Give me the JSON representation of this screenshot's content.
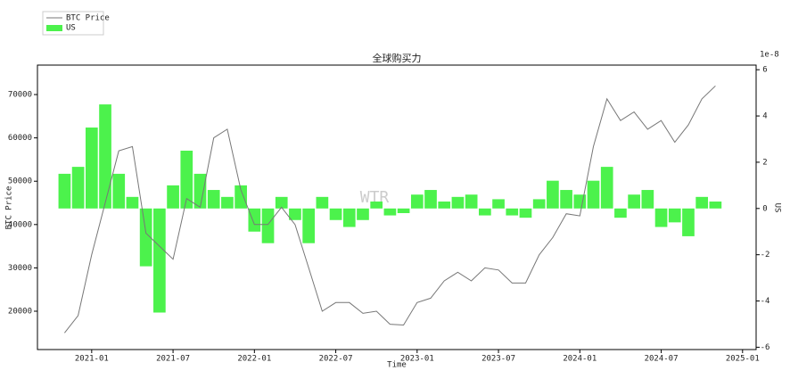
{
  "chart_data": {
    "type": "combo",
    "title": "全球购买力",
    "xlabel": "Time",
    "ylabel": "BTC Price",
    "y2label": "US",
    "y2_offset_text": "1e-8",
    "watermark": "WTR",
    "x": [
      "2020-11",
      "2020-12",
      "2021-01",
      "2021-02",
      "2021-03",
      "2021-04",
      "2021-05",
      "2021-06",
      "2021-07",
      "2021-08",
      "2021-09",
      "2021-10",
      "2021-11",
      "2021-12",
      "2022-01",
      "2022-02",
      "2022-03",
      "2022-04",
      "2022-05",
      "2022-06",
      "2022-07",
      "2022-08",
      "2022-09",
      "2022-10",
      "2022-11",
      "2022-12",
      "2023-01",
      "2023-02",
      "2023-03",
      "2023-04",
      "2023-05",
      "2023-06",
      "2023-07",
      "2023-08",
      "2023-09",
      "2023-10",
      "2023-11",
      "2023-12",
      "2024-01",
      "2024-02",
      "2024-03",
      "2024-04",
      "2024-05",
      "2024-06",
      "2024-07",
      "2024-08",
      "2024-09",
      "2024-10",
      "2024-11"
    ],
    "series": [
      {
        "name": "BTC Price",
        "type": "line",
        "axis": "y",
        "color": "#777777",
        "values": [
          15000,
          19000,
          33000,
          45000,
          57000,
          58000,
          38000,
          35000,
          32000,
          46000,
          44000,
          60000,
          62000,
          48000,
          40000,
          40000,
          44000,
          40000,
          30000,
          20000,
          22000,
          22000,
          19500,
          20000,
          17000,
          16800,
          22000,
          23000,
          27000,
          29000,
          27000,
          30000,
          29500,
          26500,
          26500,
          33000,
          37000,
          42500,
          42000,
          58000,
          69000,
          64000,
          66000,
          62000,
          64000,
          59000,
          63000,
          69000,
          72000
        ]
      },
      {
        "name": "US",
        "type": "bar",
        "axis": "y2",
        "color": "#4cf24c",
        "values": [
          1.5,
          1.8,
          3.5,
          4.5,
          1.5,
          0.5,
          -2.5,
          -4.5,
          1.0,
          2.5,
          1.5,
          0.8,
          0.5,
          1.0,
          -1.0,
          -1.5,
          0.5,
          -0.5,
          -1.5,
          0.5,
          -0.5,
          -0.8,
          -0.5,
          0.3,
          -0.3,
          -0.2,
          0.6,
          0.8,
          0.3,
          0.5,
          0.6,
          -0.3,
          0.4,
          -0.3,
          -0.4,
          0.4,
          1.2,
          0.8,
          0.6,
          1.2,
          1.8,
          -0.4,
          0.6,
          0.8,
          -0.8,
          -0.6,
          -1.2,
          0.5,
          0.3
        ]
      }
    ],
    "xlim": [
      "2020-09",
      "2025-02"
    ],
    "xticks": [
      "2021-01",
      "2021-07",
      "2022-01",
      "2022-07",
      "2023-01",
      "2023-07",
      "2024-01",
      "2024-07",
      "2025-01"
    ],
    "ylim": [
      11150,
      76800
    ],
    "yticks": [
      20000,
      30000,
      40000,
      50000,
      60000,
      70000
    ],
    "y2lim": [
      -6.1,
      6.2
    ],
    "y2ticks": [
      -6,
      -4,
      -2,
      0,
      2,
      4,
      6
    ],
    "legend": "upper left outside"
  }
}
